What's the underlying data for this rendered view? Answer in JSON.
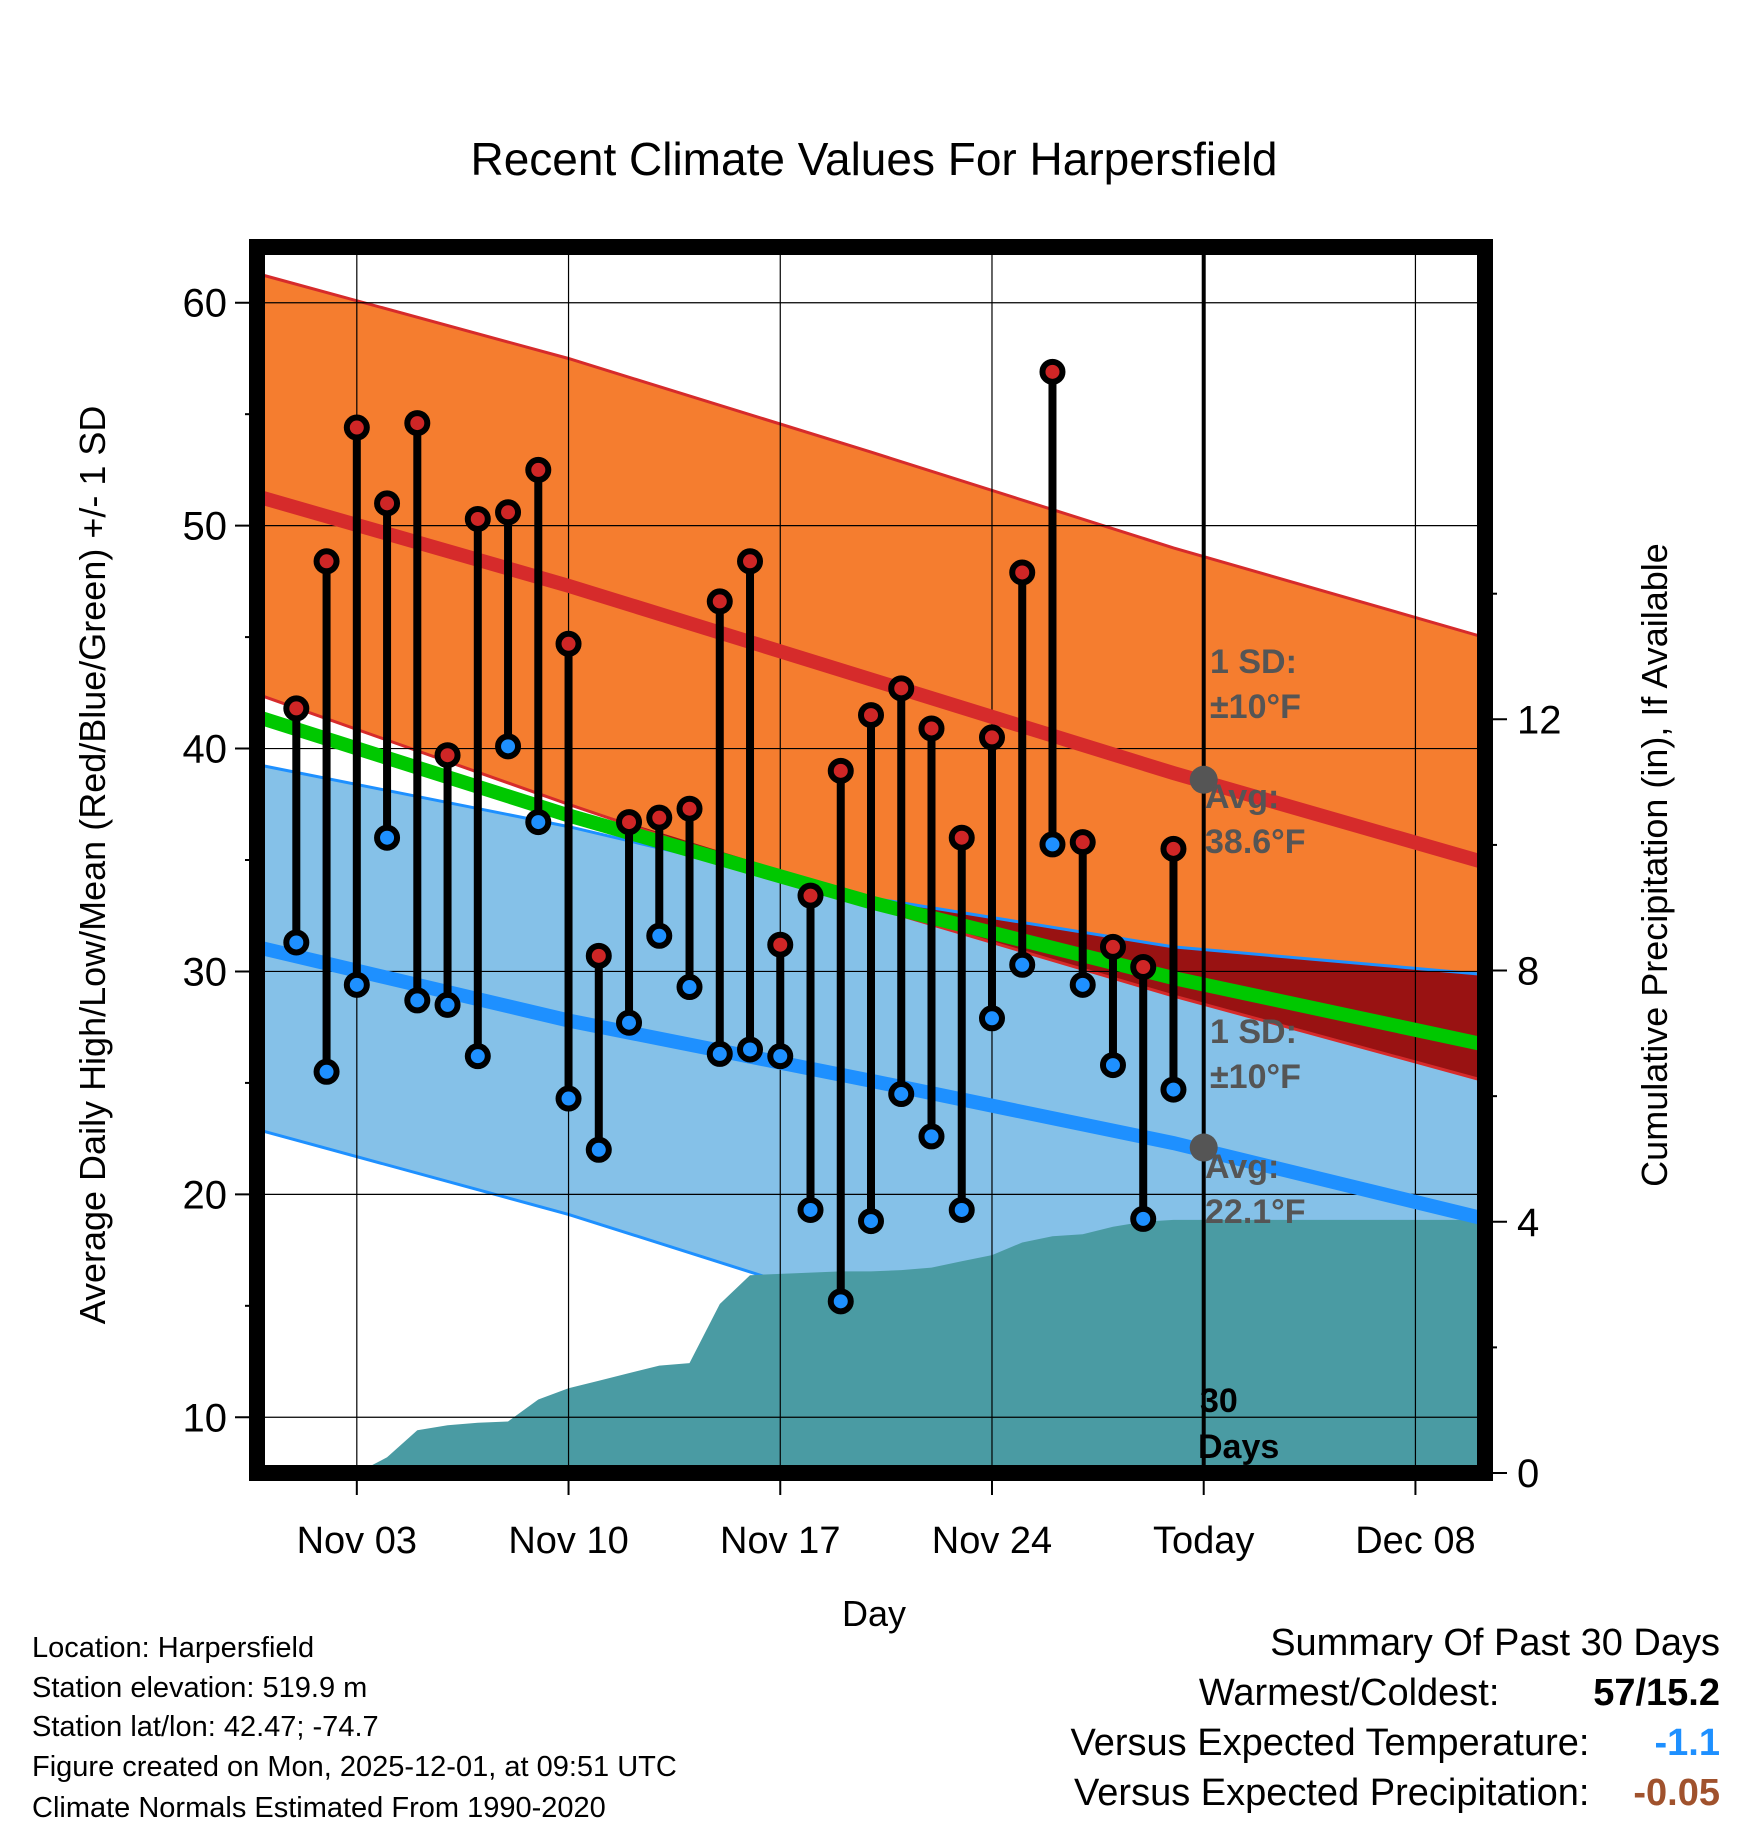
{
  "chart_data": {
    "type": "line",
    "title": "Recent Climate Values For Harpersfield",
    "xlabel": "Day",
    "ylabel": "Average Daily High/Low/Mean (Red/Blue/Green) +/- 1 SD",
    "y2label": "Cumulative Precipitation (in), If Available",
    "x_tick_labels": [
      "Nov 03",
      "Nov 10",
      "Nov 17",
      "Nov 24",
      "Today",
      "Dec 08"
    ],
    "x_tick_days": [
      3,
      10,
      17,
      24,
      31,
      38
    ],
    "xlim": [
      -0.3,
      40.3
    ],
    "ylim": [
      7.5,
      62.5
    ],
    "y_ticks": [
      10,
      20,
      30,
      40,
      50,
      60
    ],
    "y2lim": [
      0,
      19.52
    ],
    "y2_ticks": [
      0,
      4,
      8,
      12
    ],
    "today_day": 31,
    "normals": {
      "days": [
        0,
        10,
        20,
        30,
        40
      ],
      "high_mean": [
        51.2,
        47.3,
        43.1,
        38.9,
        35.0
      ],
      "high_upper": [
        61.2,
        57.5,
        53.3,
        49.0,
        45.1
      ],
      "high_lower": [
        42.3,
        37.5,
        32.9,
        28.9,
        25.2
      ],
      "mean_mean": [
        41.3,
        37.0,
        33.1,
        29.7,
        26.8
      ],
      "low_mean": [
        31.0,
        27.8,
        25.1,
        22.3,
        19.0
      ],
      "low_upper": [
        39.2,
        36.5,
        33.3,
        31.1,
        29.9
      ],
      "low_lower": [
        22.8,
        19.1,
        14.8,
        10.5,
        6.0
      ]
    },
    "observed": {
      "days": [
        1,
        2,
        3,
        4,
        5,
        6,
        7,
        8,
        9,
        10,
        11,
        12,
        13,
        14,
        15,
        16,
        17,
        18,
        19,
        20,
        21,
        22,
        23,
        24,
        25,
        26,
        27,
        28,
        29,
        30
      ],
      "high": [
        41.8,
        48.4,
        54.4,
        51.0,
        54.6,
        39.7,
        50.3,
        50.6,
        52.5,
        44.7,
        30.7,
        36.7,
        36.9,
        37.3,
        46.6,
        48.4,
        31.2,
        33.4,
        39.0,
        41.5,
        42.7,
        40.9,
        36.0,
        40.5,
        47.9,
        56.9,
        35.8,
        31.1,
        30.2,
        35.5
      ],
      "low": [
        31.3,
        25.5,
        29.4,
        36.0,
        28.7,
        28.5,
        26.2,
        40.1,
        36.7,
        24.3,
        22.0,
        27.7,
        31.6,
        29.3,
        26.3,
        26.5,
        26.2,
        19.3,
        15.2,
        18.8,
        24.5,
        22.6,
        19.3,
        27.9,
        30.3,
        35.7,
        29.4,
        25.8,
        18.9,
        24.7
      ]
    },
    "precip_cumulative": {
      "days": [
        3,
        4,
        5,
        6,
        7,
        8,
        9,
        10,
        11,
        12,
        13,
        14,
        15,
        16,
        17,
        18,
        19,
        20,
        21,
        22,
        23,
        24,
        25,
        26,
        27,
        28,
        29,
        30,
        31,
        40.3
      ],
      "values": [
        0,
        0.25,
        0.68,
        0.76,
        0.8,
        0.82,
        1.17,
        1.35,
        1.47,
        1.59,
        1.71,
        1.75,
        2.69,
        3.15,
        3.17,
        3.19,
        3.21,
        3.21,
        3.23,
        3.27,
        3.37,
        3.47,
        3.67,
        3.77,
        3.8,
        3.92,
        4.0,
        4.03,
        4.03,
        4.03
      ]
    },
    "annotations": {
      "high_sd_line1": "1 SD:",
      "high_sd_line2": "±10°F",
      "high_avg_label": "Avg:",
      "high_avg_value": "38.6°F",
      "high_avg_number": 38.6,
      "low_sd_line1": "1 SD:",
      "low_sd_line2": "±10°F",
      "low_avg_label": "Avg:",
      "low_avg_value": "22.1°F",
      "low_avg_number": 22.1,
      "days_line1": "30",
      "days_line2": "Days"
    },
    "colors": {
      "high_band": "#f57d2f",
      "high_line": "#d62b2b",
      "low_band": "#85c1e8",
      "low_line": "#1e90ff",
      "mean_line": "#00c800",
      "overlap": "#991212",
      "precip": "#4a9ba3",
      "dot_high": "#cf2626",
      "dot_low": "#1e90ff",
      "annotation": "#555555"
    }
  },
  "info": {
    "location": "Location: Harpersfield",
    "elevation": "Station elevation: 519.9 m",
    "latlon": "Station lat/lon: 42.47; -74.7",
    "created": "Figure created on Mon, 2025-12-01, at 09:51 UTC",
    "normals": "Climate Normals Estimated From 1990-2020"
  },
  "summary": {
    "title": "Summary Of Past 30 Days",
    "warmest_label": "Warmest/Coldest:",
    "warmest_value": "57/15.2",
    "temp_label": "Versus Expected Temperature:",
    "temp_value": "-1.1",
    "temp_color": "#1e90ff",
    "precip_label": "Versus Expected Precipitation:",
    "precip_value": "-0.05",
    "precip_color": "#a0522d"
  }
}
